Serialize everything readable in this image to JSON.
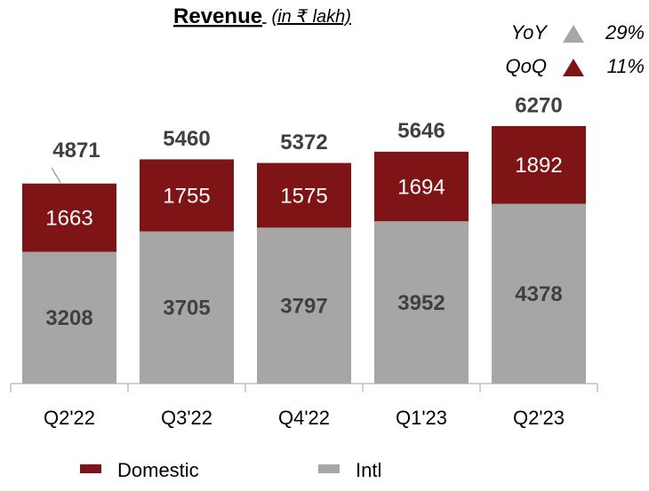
{
  "chart_data": {
    "type": "stacked_bar",
    "title": "Revenue",
    "subtitle": "(in ₹ lakh)",
    "annotations": [
      {
        "label": "YoY",
        "value": "29%",
        "color": "#a6a6a6"
      },
      {
        "label": "QoQ",
        "value": "11%",
        "color": "#7f1416"
      }
    ],
    "categories": [
      "Q2'22",
      "Q3'22",
      "Q4'22",
      "Q1'23",
      "Q2'23"
    ],
    "series": [
      {
        "name": "Intl",
        "color": "#a6a6a6",
        "values": [
          3208,
          3705,
          3797,
          3952,
          4378
        ]
      },
      {
        "name": "Domestic",
        "color": "#7f1416",
        "values": [
          1663,
          1755,
          1575,
          1694,
          1892
        ]
      }
    ],
    "totals": [
      4871,
      5460,
      5372,
      5646,
      6270
    ]
  }
}
